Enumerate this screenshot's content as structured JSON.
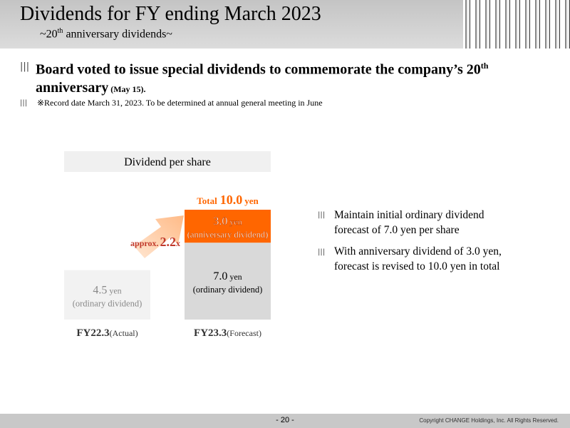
{
  "header": {
    "title": "Dividends for FY ending March 2023",
    "subtitle": {
      "pre": "~20",
      "sup": "th",
      "post": " anniversary dividends~"
    }
  },
  "bullets": [
    {
      "text": "Board voted to issue special dividends to commemorate the company’s 20",
      "sup": "th",
      "text2": "anniversary",
      "small": " (May 15)."
    }
  ],
  "note": "※Record date March 31, 2023. To be determined at annual general meeting in June",
  "chart_data": {
    "type": "bar",
    "stacked": true,
    "title": "Dividend per share",
    "unit": "yen",
    "categories": [
      "FY22.3",
      "FY23.3"
    ],
    "category_notes": [
      "(Actual)",
      "(Forecast)"
    ],
    "ylim": [
      0,
      10
    ],
    "series": [
      {
        "name": "ordinary dividend",
        "label": "(ordinary dividend)",
        "colors": [
          "#f2f2f2",
          "#d9d9d9"
        ],
        "values": [
          4.5,
          7
        ],
        "value_labels": [
          "4.5",
          "7.0"
        ]
      },
      {
        "name": "anniversary dividend",
        "label": "(anniversary dividend)",
        "color": "#ff6600",
        "values": [
          null,
          3
        ],
        "value_labels": [
          null,
          "3.0"
        ]
      }
    ],
    "total": {
      "prefix": "Total",
      "value": 10,
      "value_label": "10.0",
      "unit": "yen"
    },
    "annotation": {
      "prefix": "approx.",
      "value": 2.2,
      "unit": "x"
    }
  },
  "side_bullets": [
    "Maintain initial ordinary dividend forecast of 7.0 yen per share",
    "With anniversary dividend of 3.0 yen, forecast is revised to 10.0 yen in total"
  ],
  "footer": {
    "page": "- 20 -",
    "copyright": "Copyright CHANGE Holdings, Inc. All Rights Reserved."
  }
}
